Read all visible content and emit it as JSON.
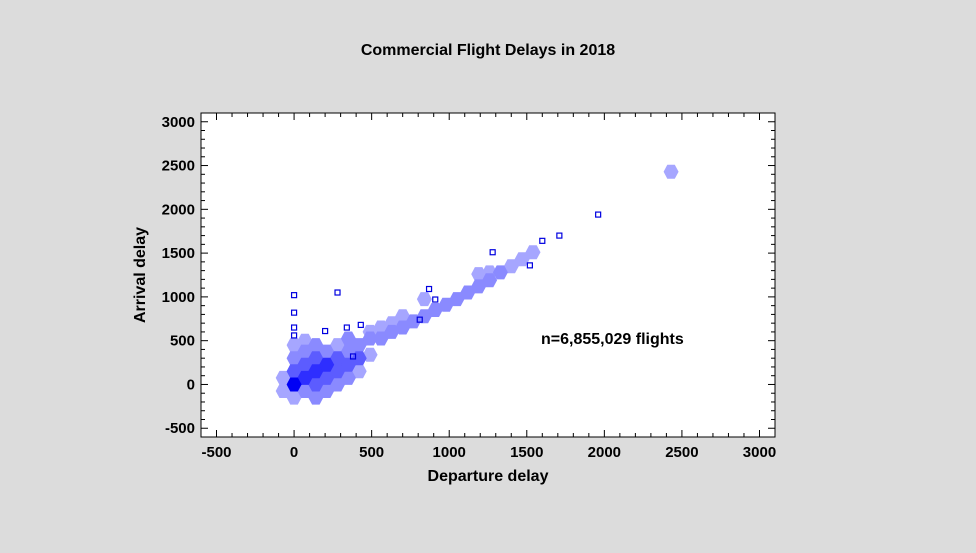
{
  "chart_data": {
    "type": "hexbin-scatter",
    "title": "Commercial Flight Delays in 2018",
    "xlabel": "Departure delay",
    "ylabel": "Arrival delay",
    "annotation": "n=6,855,029 flights",
    "xlim": [
      -600,
      3100
    ],
    "ylim": [
      -600,
      3100
    ],
    "xticks": [
      -500,
      0,
      500,
      1000,
      1500,
      2000,
      2500,
      3000
    ],
    "yticks": [
      -500,
      0,
      500,
      1000,
      1500,
      2000,
      2500,
      3000
    ],
    "minor_tick_step": 100,
    "density_colors": [
      "#c4c4ff",
      "#a6a6ff",
      "#8a8aff",
      "#5c5cff",
      "#2e2eff",
      "#0000f5"
    ],
    "hexbins": [
      [
        -70,
        -75,
        1
      ],
      [
        -70,
        75,
        1
      ],
      [
        0,
        -150,
        1
      ],
      [
        0,
        0,
        5
      ],
      [
        0,
        150,
        3
      ],
      [
        0,
        300,
        2
      ],
      [
        0,
        450,
        1
      ],
      [
        70,
        -75,
        2
      ],
      [
        70,
        75,
        4
      ],
      [
        70,
        225,
        3
      ],
      [
        70,
        375,
        2
      ],
      [
        70,
        500,
        1
      ],
      [
        140,
        -150,
        2
      ],
      [
        140,
        0,
        3
      ],
      [
        140,
        150,
        4
      ],
      [
        140,
        300,
        3
      ],
      [
        140,
        450,
        2
      ],
      [
        210,
        -75,
        2
      ],
      [
        210,
        75,
        3
      ],
      [
        210,
        225,
        4
      ],
      [
        210,
        375,
        2
      ],
      [
        280,
        0,
        2
      ],
      [
        280,
        150,
        3
      ],
      [
        280,
        300,
        3
      ],
      [
        280,
        450,
        1
      ],
      [
        350,
        75,
        2
      ],
      [
        350,
        225,
        3
      ],
      [
        350,
        375,
        2
      ],
      [
        350,
        525,
        2
      ],
      [
        420,
        150,
        1
      ],
      [
        420,
        300,
        3
      ],
      [
        420,
        450,
        2
      ],
      [
        490,
        340,
        1
      ],
      [
        490,
        525,
        2
      ],
      [
        490,
        600,
        1
      ],
      [
        560,
        525,
        2
      ],
      [
        560,
        650,
        1
      ],
      [
        630,
        600,
        2
      ],
      [
        630,
        700,
        1
      ],
      [
        700,
        650,
        2
      ],
      [
        700,
        780,
        1
      ],
      [
        770,
        720,
        2
      ],
      [
        840,
        780,
        2
      ],
      [
        840,
        975,
        1
      ],
      [
        910,
        850,
        2
      ],
      [
        980,
        910,
        2
      ],
      [
        1050,
        975,
        2
      ],
      [
        1120,
        1050,
        2
      ],
      [
        1190,
        1120,
        2
      ],
      [
        1190,
        1260,
        1
      ],
      [
        1260,
        1190,
        2
      ],
      [
        1260,
        1280,
        1
      ],
      [
        1330,
        1280,
        2
      ],
      [
        1400,
        1350,
        1
      ],
      [
        1470,
        1430,
        1
      ],
      [
        1540,
        1510,
        1
      ],
      [
        2430,
        2430,
        1
      ]
    ],
    "outliers": [
      [
        0,
        1020
      ],
      [
        0,
        820
      ],
      [
        0,
        650
      ],
      [
        0,
        560
      ],
      [
        280,
        1050
      ],
      [
        200,
        610
      ],
      [
        340,
        650
      ],
      [
        430,
        680
      ],
      [
        380,
        320
      ],
      [
        810,
        740
      ],
      [
        870,
        1090
      ],
      [
        910,
        970
      ],
      [
        1280,
        1510
      ],
      [
        1520,
        1360
      ],
      [
        1600,
        1640
      ],
      [
        1710,
        1700
      ],
      [
        1960,
        1940
      ]
    ],
    "outlier_color": "#0000e0"
  }
}
